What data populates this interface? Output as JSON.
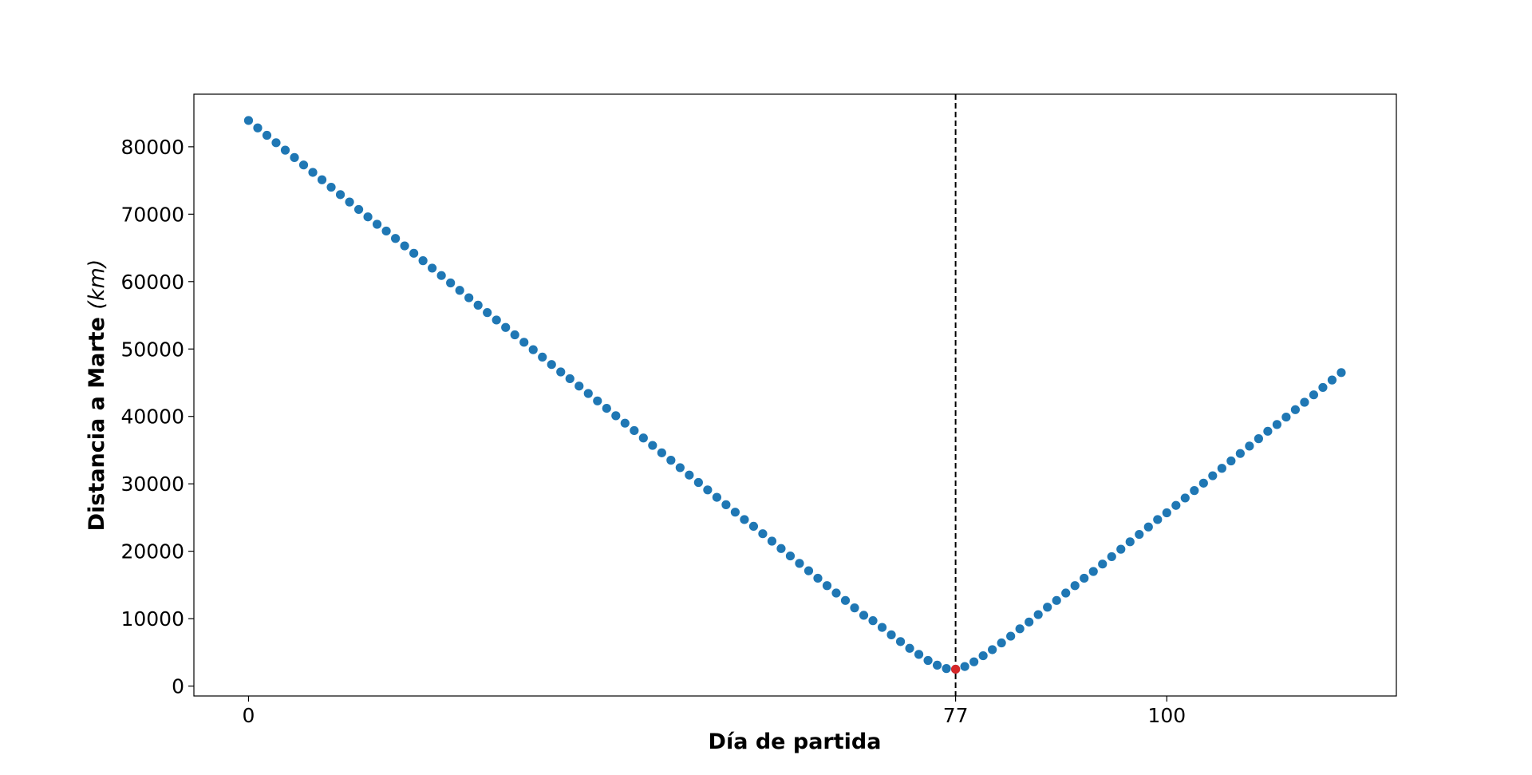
{
  "chart_data": {
    "type": "scatter",
    "xlabel": "Día de partida",
    "ylabel": "Distancia a Marte",
    "ylabel_unit": "(km)",
    "xlim": [
      -5.95,
      125
    ],
    "ylim": [
      -1470,
      87800
    ],
    "xticks": [
      0,
      77,
      100
    ],
    "yticks": [
      0,
      10000,
      20000,
      30000,
      40000,
      50000,
      60000,
      70000,
      80000
    ],
    "vline": 77,
    "vline_color": "#000000",
    "series": [
      {
        "color": "#1f77b4",
        "x": [
          0,
          1,
          2,
          3,
          4,
          5,
          6,
          7,
          8,
          9,
          10,
          11,
          12,
          13,
          14,
          15,
          16,
          17,
          18,
          19,
          20,
          21,
          22,
          23,
          24,
          25,
          26,
          27,
          28,
          29,
          30,
          31,
          32,
          33,
          34,
          35,
          36,
          37,
          38,
          39,
          40,
          41,
          42,
          43,
          44,
          45,
          46,
          47,
          48,
          49,
          50,
          51,
          52,
          53,
          54,
          55,
          56,
          57,
          58,
          59,
          60,
          61,
          62,
          63,
          64,
          65,
          66,
          67,
          68,
          69,
          70,
          71,
          72,
          73,
          74,
          75,
          76,
          77,
          78,
          79,
          80,
          81,
          82,
          83,
          84,
          85,
          86,
          87,
          88,
          89,
          90,
          91,
          92,
          93,
          94,
          95,
          96,
          97,
          98,
          99,
          100,
          101,
          102,
          103,
          104,
          105,
          106,
          107,
          108,
          109,
          110,
          111,
          112,
          113,
          114,
          115,
          116,
          117,
          118,
          119
        ],
        "values": [
          83900,
          82800,
          81700,
          80600,
          79500,
          78400,
          77300,
          76200,
          75100,
          74000,
          72900,
          71800,
          70700,
          69600,
          68500,
          67500,
          66400,
          65300,
          64200,
          63100,
          62000,
          60900,
          59800,
          58700,
          57600,
          56500,
          55400,
          54300,
          53200,
          52100,
          51000,
          49900,
          48800,
          47700,
          46600,
          45600,
          44500,
          43400,
          42300,
          41200,
          40100,
          39000,
          37900,
          36800,
          35700,
          34600,
          33500,
          32400,
          31300,
          30200,
          29100,
          28000,
          26900,
          25800,
          24700,
          23700,
          22600,
          21500,
          20400,
          19300,
          18200,
          17100,
          16000,
          14900,
          13800,
          12700,
          11600,
          10500,
          9700,
          8700,
          7600,
          6600,
          5600,
          4700,
          3800,
          3100,
          2600,
          2500,
          2900,
          3600,
          4500,
          5400,
          6400,
          7400,
          8500,
          9500,
          10600,
          11700,
          12700,
          13800,
          14900,
          16000,
          17000,
          18100,
          19200,
          20300,
          21400,
          22500,
          23600,
          24700,
          25700,
          26800,
          27900,
          29000,
          30100,
          31200,
          32300,
          33400,
          34500,
          35600,
          36700,
          37800,
          38800,
          39900,
          41000,
          42100,
          43200,
          44300,
          45400,
          46500
        ]
      },
      {
        "color": "#d62728",
        "x": [
          77
        ],
        "values": [
          2500
        ]
      }
    ]
  }
}
